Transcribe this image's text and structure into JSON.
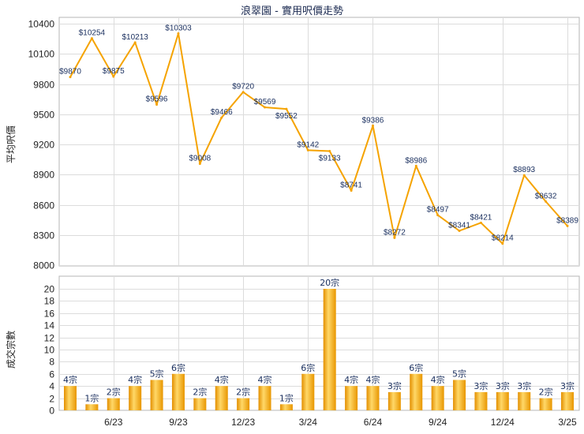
{
  "title": "浪翠園 - 實用呎價走勢",
  "chart_data": [
    {
      "type": "line",
      "ylabel": "平均呎價",
      "ylim": [
        8000,
        10400
      ],
      "yticks": [
        8000,
        8300,
        8600,
        8900,
        9200,
        9500,
        9800,
        10100,
        10400
      ],
      "values": [
        9870,
        10254,
        9875,
        10213,
        9596,
        10303,
        9008,
        9466,
        9720,
        9569,
        9552,
        9142,
        9133,
        8741,
        9386,
        8272,
        8986,
        8497,
        8341,
        8421,
        8214,
        8893,
        8632,
        8389
      ],
      "data_labels": [
        "$9870",
        "$10254",
        "$9875",
        "$10213",
        "$9596",
        "$10303",
        "$9008",
        "$9466",
        "$9720",
        "$9569",
        "$9552",
        "$9142",
        "$9133",
        "$8741",
        "$9386",
        "$8272",
        "$8986",
        "$8497",
        "$8341",
        "$8421",
        "$8214",
        "$8893",
        "$8632",
        "$8389"
      ],
      "color": "#f5a300",
      "grid": true
    },
    {
      "type": "bar",
      "ylabel": "成交宗數",
      "ylim": [
        0,
        20
      ],
      "yticks": [
        0,
        2,
        4,
        6,
        8,
        10,
        12,
        14,
        16,
        18,
        20
      ],
      "categories": [
        "",
        "",
        "6/23",
        "",
        "",
        "9/23",
        "",
        "",
        "12/23",
        "",
        "",
        "3/24",
        "",
        "",
        "6/24",
        "",
        "",
        "9/24",
        "",
        "",
        "12/24",
        "",
        "",
        "3/25"
      ],
      "values": [
        4,
        1,
        2,
        4,
        5,
        6,
        2,
        4,
        2,
        4,
        1,
        6,
        20,
        4,
        4,
        3,
        6,
        4,
        5,
        3,
        3,
        3,
        2,
        3
      ],
      "data_labels": [
        "4宗",
        "1宗",
        "2宗",
        "4宗",
        "5宗",
        "6宗",
        "2宗",
        "4宗",
        "2宗",
        "4宗",
        "1宗",
        "6宗",
        "20宗",
        "4宗",
        "4宗",
        "3宗",
        "6宗",
        "4宗",
        "5宗",
        "3宗",
        "3宗",
        "3宗",
        "2宗",
        "3宗"
      ],
      "color": "#f0a000",
      "grid": true
    }
  ]
}
